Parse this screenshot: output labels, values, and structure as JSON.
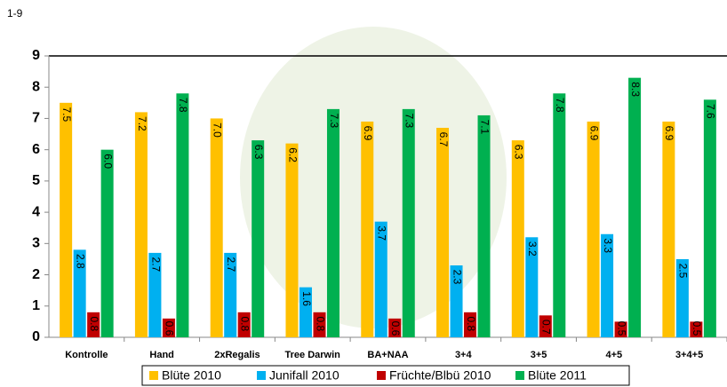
{
  "chart_data": {
    "type": "bar",
    "y_label": "1-9",
    "categories": [
      "Kontrolle",
      "Hand",
      "2xRegalis",
      "Tree Darwin",
      "BA+NAA",
      "3+4",
      "3+5",
      "4+5",
      "3+4+5"
    ],
    "series": [
      {
        "name": "Blüte 2010",
        "color": "#FFC000",
        "values": [
          7.5,
          7.2,
          7.0,
          6.2,
          6.9,
          6.7,
          6.3,
          6.9,
          6.9
        ],
        "value_labels": [
          "7.5",
          "7.2",
          "7.0",
          "6.2",
          "6.9",
          "6.7",
          "6.3",
          "6.9",
          "6.9"
        ]
      },
      {
        "name": "Junifall 2010",
        "color": "#00B0F0",
        "values": [
          2.8,
          2.7,
          2.7,
          1.6,
          3.7,
          2.3,
          3.2,
          3.3,
          2.5
        ],
        "value_labels": [
          "2.8",
          "2.7",
          "2.7",
          "1.6",
          "3.7",
          "2.3",
          "3.2",
          "3.3",
          "2.5"
        ]
      },
      {
        "name": "Früchte/Blbü 2010",
        "color": "#C00000",
        "values": [
          0.8,
          0.6,
          0.8,
          0.8,
          0.6,
          0.8,
          0.7,
          0.5,
          0.5
        ],
        "value_labels": [
          "0.8",
          "0.6",
          "0.8",
          "0.8",
          "0.6",
          "0.8",
          "0.7",
          "0.5",
          "0.5"
        ]
      },
      {
        "name": "Blüte 2011",
        "color": "#00B050",
        "values": [
          6.0,
          7.8,
          6.3,
          7.3,
          7.3,
          7.1,
          7.8,
          8.3,
          7.6
        ],
        "value_labels": [
          "6.0",
          "7.8",
          "6.3",
          "7.3",
          "7.3",
          "7.1",
          "7.8",
          "8.3",
          "7.6"
        ]
      }
    ],
    "ylim": [
      0,
      9
    ],
    "yticks": [
      0,
      1,
      2,
      3,
      4,
      5,
      6,
      7,
      8,
      9
    ]
  }
}
